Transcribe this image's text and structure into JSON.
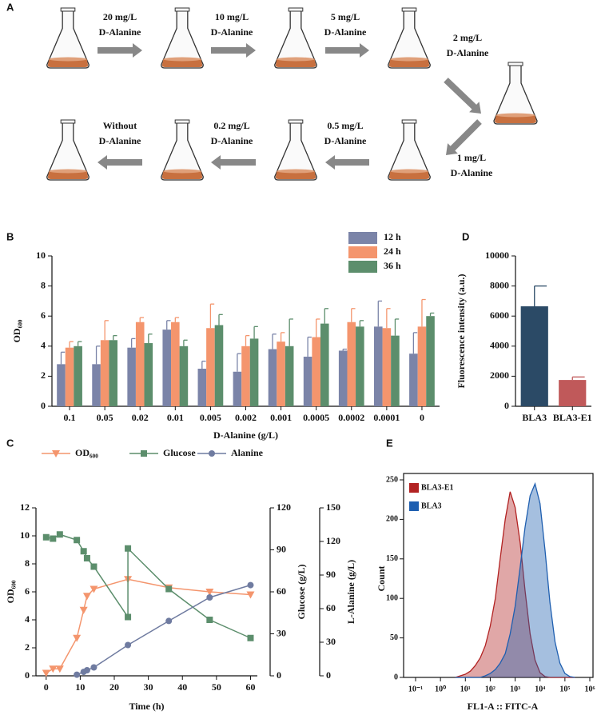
{
  "diagram": {
    "panel": "A",
    "steps": [
      {
        "conc": "20 mg/L",
        "agent": "D-Alanine"
      },
      {
        "conc": "10 mg/L",
        "agent": "D-Alanine"
      },
      {
        "conc": "5 mg/L",
        "agent": "D-Alanine"
      },
      {
        "conc": "2 mg/L",
        "agent": "D-Alanine"
      },
      {
        "conc": "1 mg/L",
        "agent": "D-Alanine"
      },
      {
        "conc": "0.5 mg/L",
        "agent": "D-Alanine"
      },
      {
        "conc": "0.2 mg/L",
        "agent": "D-Alanine"
      },
      {
        "conc": "Without",
        "agent": "D-Alanine"
      }
    ]
  },
  "chart_data": [
    {
      "panel": "B",
      "type": "bar",
      "xlabel": "D-Alanine (g/L)",
      "ylabel": "OD₆₀₀",
      "categories": [
        "0.1",
        "0.05",
        "0.02",
        "0.01",
        "0.005",
        "0.002",
        "0.001",
        "0.0005",
        "0.0002",
        "0.0001",
        "0"
      ],
      "ylim": [
        0,
        10
      ],
      "yticks": [
        0,
        2,
        4,
        6,
        8,
        10
      ],
      "series": [
        {
          "name": "12 h",
          "color": "#7b84a8",
          "values": [
            2.8,
            2.8,
            3.9,
            5.1,
            2.5,
            2.3,
            3.8,
            3.3,
            3.7,
            5.3,
            3.5
          ],
          "errors": [
            0.8,
            1.2,
            0.6,
            0.6,
            0.5,
            1.2,
            1.0,
            1.3,
            0.1,
            1.7,
            1.4
          ]
        },
        {
          "name": "24 h",
          "color": "#f4956d",
          "values": [
            3.9,
            4.4,
            5.6,
            5.6,
            5.2,
            4.0,
            4.3,
            4.6,
            5.6,
            5.2,
            5.3
          ],
          "errors": [
            0.4,
            1.3,
            0.3,
            0.3,
            1.6,
            0.7,
            0.6,
            1.2,
            0.9,
            1.3,
            1.8
          ]
        },
        {
          "name": "36 h",
          "color": "#5c8e6c",
          "values": [
            4.0,
            4.4,
            4.2,
            4.0,
            5.4,
            4.5,
            4.0,
            5.5,
            5.3,
            4.7,
            6.0
          ],
          "errors": [
            0.3,
            0.3,
            0.6,
            0.4,
            0.7,
            0.8,
            1.8,
            1.0,
            0.4,
            1.1,
            0.2
          ]
        }
      ]
    },
    {
      "panel": "C",
      "type": "line",
      "xlabel": "Time (h)",
      "ylabel": "OD₆₀₀",
      "y2label": "Glucose (g/L)",
      "y3label": "L-Alanine (g/L)",
      "xlim": [
        -3,
        62
      ],
      "xticks": [
        0,
        10,
        20,
        30,
        40,
        50,
        60
      ],
      "ylim": [
        0,
        12
      ],
      "yticks": [
        0,
        2,
        4,
        6,
        8,
        10,
        12
      ],
      "y2lim": [
        0,
        120
      ],
      "y2ticks": [
        0,
        30,
        60,
        90,
        120
      ],
      "y3lim": [
        0,
        150
      ],
      "y3ticks": [
        0,
        30,
        60,
        90,
        120,
        150
      ],
      "series": [
        {
          "name": "OD₆₀₀",
          "color": "#f4956d",
          "marker": "triangle",
          "x": [
            0,
            2,
            4,
            9,
            11,
            12,
            14,
            24,
            36,
            48,
            60
          ],
          "values": [
            0.2,
            0.5,
            0.5,
            2.7,
            4.7,
            5.7,
            6.2,
            6.9,
            6.3,
            6.0,
            5.8
          ]
        },
        {
          "name": "Glucose",
          "color": "#5c8e6c",
          "marker": "square",
          "axis": "y2",
          "x": [
            0,
            2,
            4,
            9,
            11,
            12,
            14,
            24,
            24,
            36,
            48,
            60
          ],
          "values": [
            99,
            98,
            101,
            97,
            89,
            84,
            78,
            42,
            91,
            62,
            40,
            27
          ]
        },
        {
          "name": "Alanine",
          "color": "#6f7ba0",
          "marker": "circle",
          "axis": "y3",
          "x": [
            9,
            11,
            12,
            14,
            24,
            36,
            48,
            60
          ],
          "values": [
            1,
            3.5,
            5,
            7.5,
            27.5,
            49,
            70,
            81
          ]
        }
      ]
    },
    {
      "panel": "D",
      "type": "bar",
      "ylabel": "Fluorescence intensity (a.u.)",
      "categories": [
        "BLA3",
        "BLA3-E1"
      ],
      "ylim": [
        0,
        10000
      ],
      "yticks": [
        0,
        2000,
        4000,
        6000,
        8000,
        10000
      ],
      "series": [
        {
          "colors": [
            "#2b4a66",
            "#c0595a"
          ],
          "values": [
            6650,
            1750
          ],
          "errors": [
            1350,
            200
          ]
        }
      ]
    },
    {
      "panel": "E",
      "type": "area",
      "xlabel": "FL1-A :: FITC-A",
      "ylabel": "Count",
      "xscale": "log",
      "xlim": [
        0.1,
        1000000
      ],
      "xticks": [
        {
          "value": 0.1,
          "label": "10⁻¹"
        },
        {
          "value": 1,
          "label": "10⁰"
        },
        {
          "value": 10,
          "label": "10¹"
        },
        {
          "value": 100,
          "label": "10²"
        },
        {
          "value": 1000,
          "label": "10³"
        },
        {
          "value": 10000,
          "label": "10⁴"
        },
        {
          "value": 100000,
          "label": "10⁵"
        },
        {
          "value": 1000000,
          "label": "10⁶"
        }
      ],
      "ylim": [
        0,
        250
      ],
      "yticks": [
        0,
        50,
        100,
        150,
        200,
        250
      ],
      "x": [
        4,
        6.3,
        10,
        16,
        25,
        40,
        63,
        100,
        160,
        250,
        400,
        630,
        1000,
        1600,
        2500,
        4000,
        6300,
        10000,
        16000,
        25000,
        40000,
        63000,
        100000,
        160000,
        250000
      ],
      "series": [
        {
          "name": "BLA3-E1",
          "color": "#b22222",
          "values": [
            0,
            2,
            4,
            8,
            15,
            25,
            40,
            65,
            100,
            150,
            200,
            235,
            215,
            170,
            110,
            55,
            22,
            6,
            1,
            0,
            0,
            0,
            0,
            0,
            0
          ]
        },
        {
          "name": "BLA3",
          "color": "#1f5fb0",
          "values": [
            0,
            0,
            0,
            0,
            0,
            0,
            2,
            5,
            10,
            18,
            30,
            55,
            90,
            140,
            190,
            230,
            245,
            220,
            160,
            95,
            45,
            18,
            5,
            1,
            0
          ]
        }
      ]
    }
  ]
}
